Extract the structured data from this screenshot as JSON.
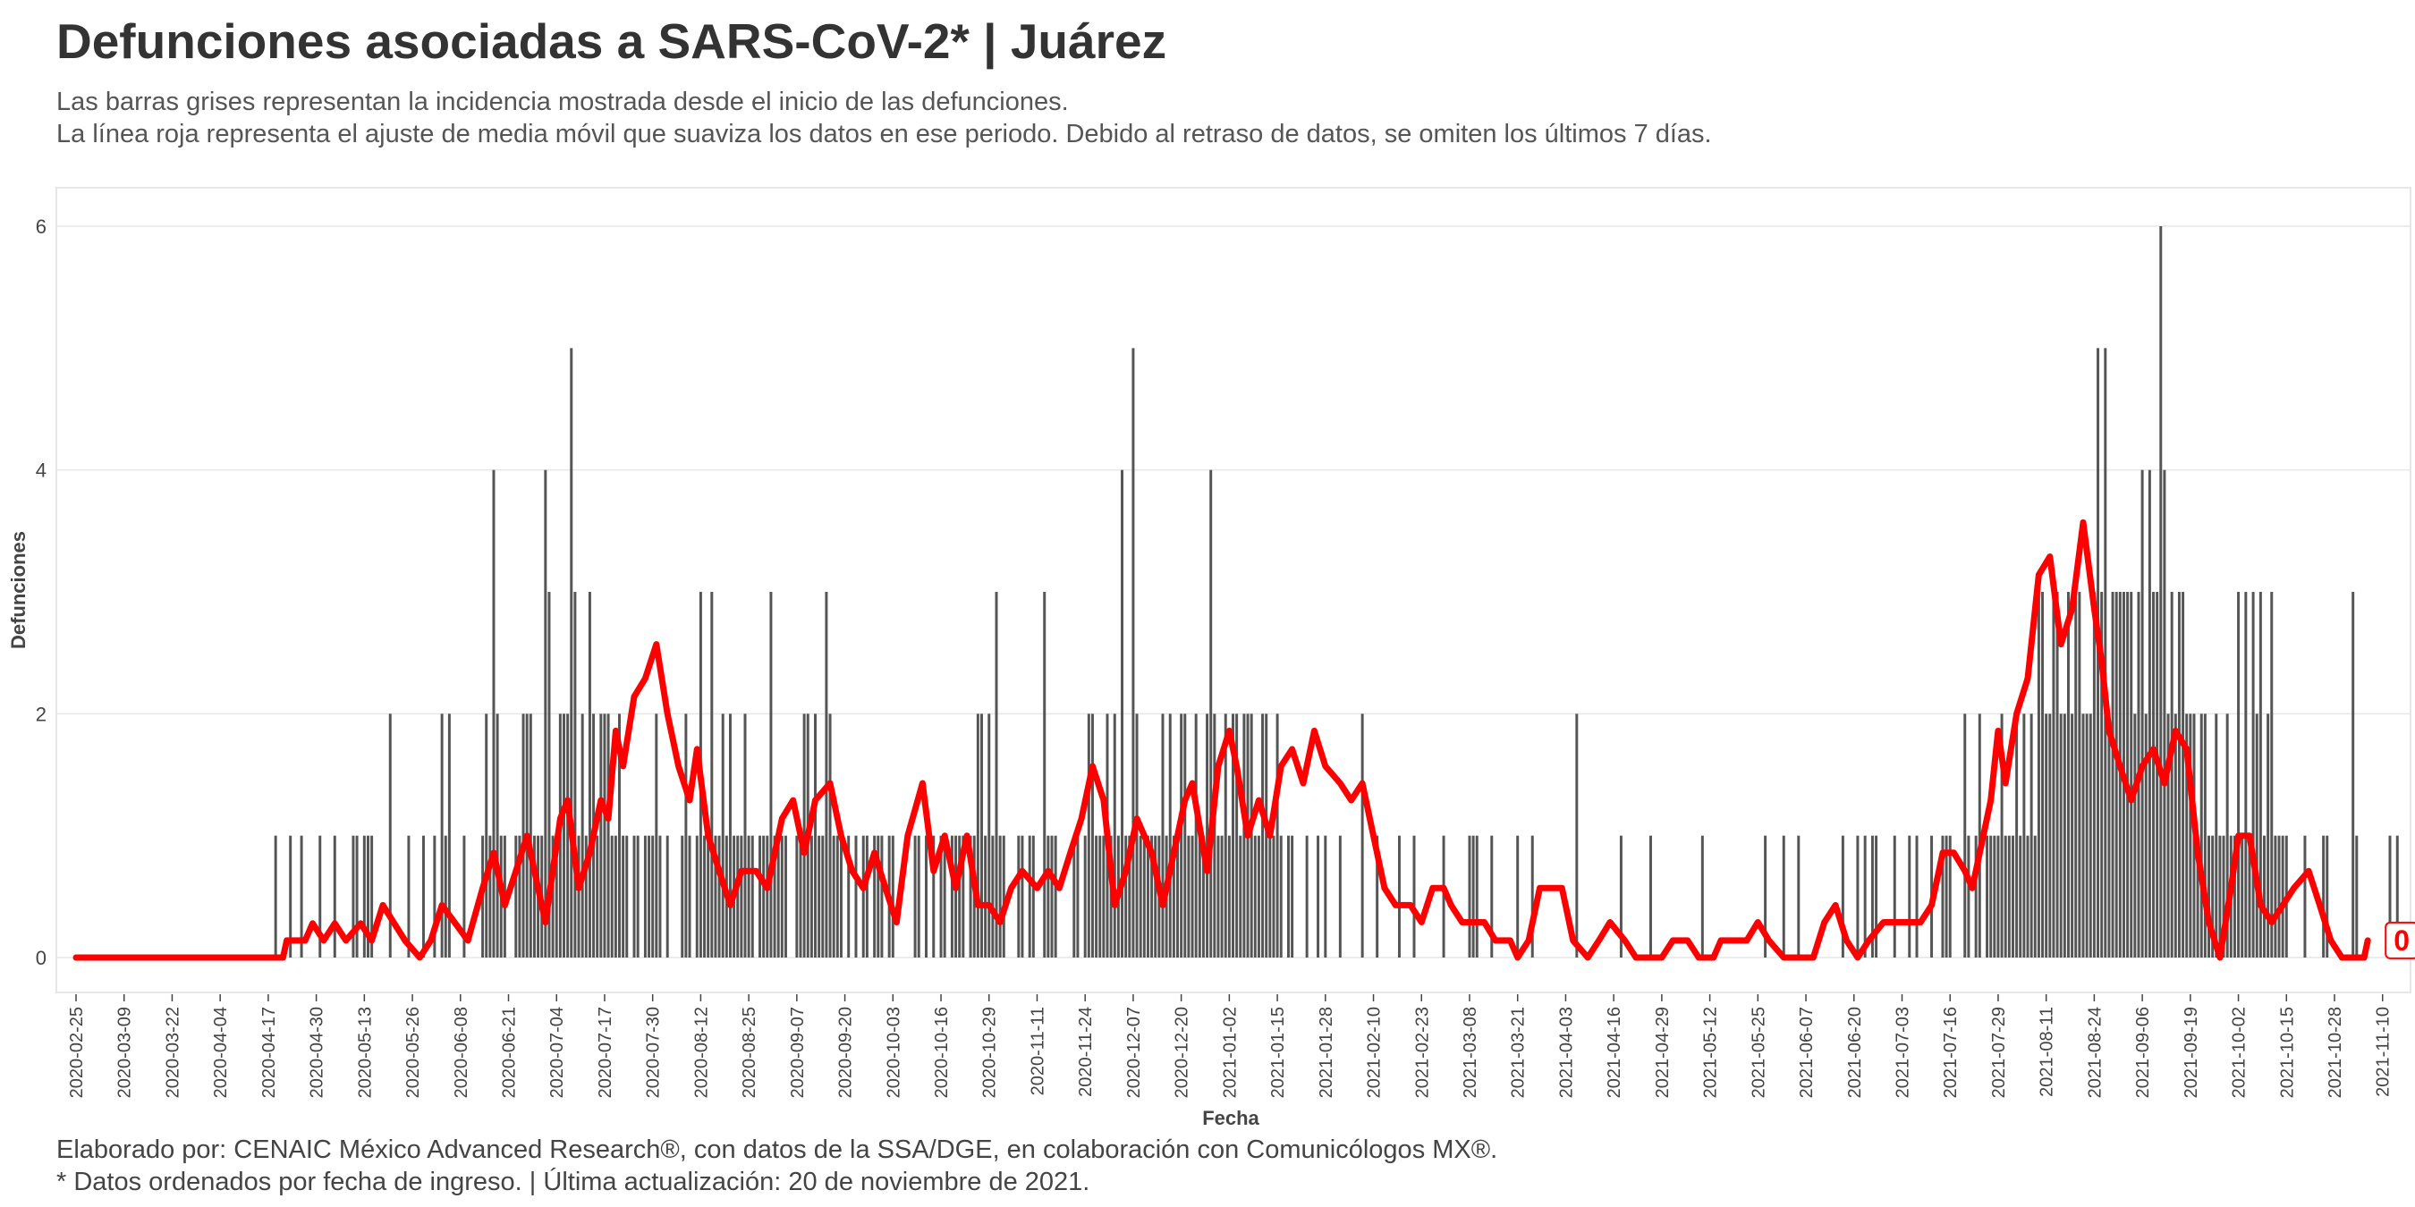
{
  "title": "Defunciones asociadas a SARS-CoV-2* | Juárez",
  "subtitle_lines": [
    "Las barras grises representan la incidencia mostrada desde el inicio de las defunciones.",
    "La línea roja representa el ajuste de media móvil que suaviza los datos en ese periodo. Debido al retraso de datos, se omiten los últimos 7 días."
  ],
  "caption_lines": [
    "Elaborado por: CENAIC México Advanced Research®, con datos de la SSA/DGE, en colaboración con Comunicólogos MX®.",
    "* Datos ordenados por fecha de ingreso. | Última actualización: 20 de noviembre de 2021."
  ],
  "colors": {
    "bars": "#555555",
    "line": "#ff0000",
    "grid": "#e6e6e6",
    "text": "#444444"
  },
  "chart_data": {
    "type": "bar",
    "xlabel": "Fecha",
    "ylabel": "Defunciones",
    "start_date": "2020-02-25",
    "end_date": "2021-11-12",
    "ylim": [
      0,
      6
    ],
    "yticks": [
      0,
      2,
      4,
      6
    ],
    "xticks": [
      "2020-02-25",
      "2020-03-09",
      "2020-03-22",
      "2020-04-04",
      "2020-04-17",
      "2020-04-30",
      "2020-05-13",
      "2020-05-26",
      "2020-06-08",
      "2020-06-21",
      "2020-07-04",
      "2020-07-17",
      "2020-07-30",
      "2020-08-12",
      "2020-08-25",
      "2020-09-07",
      "2020-09-20",
      "2020-10-03",
      "2020-10-16",
      "2020-10-29",
      "2020-11-11",
      "2020-11-24",
      "2020-12-07",
      "2020-12-20",
      "2021-01-02",
      "2021-01-15",
      "2021-01-28",
      "2021-02-10",
      "2021-02-23",
      "2021-03-08",
      "2021-03-21",
      "2021-04-03",
      "2021-04-16",
      "2021-04-29",
      "2021-05-12",
      "2021-05-25",
      "2021-06-07",
      "2021-06-20",
      "2021-07-03",
      "2021-07-16",
      "2021-07-29",
      "2021-08-11",
      "2021-08-24",
      "2021-09-06",
      "2021-09-19",
      "2021-10-02",
      "2021-10-15",
      "2021-10-28",
      "2021-11-10"
    ],
    "values": [
      0,
      0,
      0,
      0,
      0,
      0,
      0,
      0,
      0,
      0,
      0,
      0,
      0,
      0,
      0,
      0,
      0,
      0,
      0,
      0,
      0,
      0,
      0,
      0,
      0,
      0,
      0,
      0,
      0,
      0,
      0,
      0,
      0,
      0,
      0,
      0,
      0,
      0,
      0,
      0,
      0,
      0,
      0,
      0,
      0,
      0,
      0,
      0,
      0,
      0,
      0,
      0,
      0,
      0,
      1,
      0,
      0,
      0,
      1,
      0,
      0,
      1,
      0,
      0,
      0,
      0,
      1,
      0,
      0,
      0,
      1,
      0,
      0,
      0,
      0,
      1,
      1,
      0,
      1,
      1,
      1,
      0,
      0,
      0,
      0,
      2,
      0,
      0,
      0,
      0,
      1,
      0,
      0,
      0,
      1,
      0,
      0,
      1,
      0,
      2,
      1,
      2,
      0,
      0,
      0,
      1,
      0,
      0,
      0,
      0,
      1,
      2,
      1,
      4,
      2,
      1,
      1,
      0,
      0,
      1,
      1,
      2,
      2,
      2,
      1,
      1,
      1,
      4,
      3,
      1,
      1,
      2,
      2,
      2,
      5,
      3,
      1,
      2,
      1,
      3,
      2,
      1,
      2,
      2,
      2,
      1,
      1,
      2,
      1,
      1,
      0,
      1,
      1,
      0,
      1,
      1,
      1,
      2,
      1,
      0,
      1,
      0,
      0,
      0,
      1,
      2,
      1,
      0,
      1,
      3,
      1,
      1,
      3,
      1,
      1,
      2,
      1,
      2,
      1,
      1,
      1,
      2,
      1,
      1,
      0,
      1,
      1,
      1,
      3,
      1,
      1,
      1,
      1,
      0,
      0,
      1,
      1,
      2,
      2,
      1,
      2,
      1,
      1,
      3,
      2,
      1,
      1,
      1,
      0,
      1,
      0,
      1,
      0,
      1,
      1,
      0,
      1,
      1,
      1,
      0,
      1,
      1,
      0,
      0,
      0,
      0,
      0,
      1,
      1,
      0,
      1,
      0,
      1,
      0,
      1,
      1,
      0,
      1,
      1,
      1,
      1,
      0,
      1,
      1,
      2,
      2,
      1,
      2,
      1,
      3,
      1,
      1,
      0,
      0,
      0,
      1,
      1,
      0,
      1,
      1,
      0,
      0,
      3,
      1,
      1,
      1,
      0,
      0,
      0,
      0,
      1,
      1,
      0,
      1,
      2,
      2,
      1,
      1,
      1,
      2,
      1,
      2,
      1,
      4,
      1,
      1,
      5,
      2,
      1,
      1,
      1,
      1,
      1,
      1,
      2,
      1,
      2,
      1,
      1,
      2,
      2,
      1,
      1,
      2,
      1,
      1,
      2,
      4,
      2,
      1,
      1,
      2,
      1,
      2,
      2,
      1,
      2,
      2,
      2,
      1,
      1,
      2,
      2,
      1,
      1,
      2,
      1,
      0,
      1,
      1,
      0,
      0,
      0,
      1,
      0,
      0,
      1,
      0,
      1,
      0,
      0,
      0,
      1,
      0,
      0,
      0,
      0,
      0,
      2,
      0,
      0,
      0,
      1,
      0,
      0,
      0,
      0,
      0,
      1,
      0,
      0,
      0,
      1,
      0,
      0,
      0,
      0,
      0,
      0,
      0,
      1,
      0,
      0,
      0,
      0,
      0,
      0,
      1,
      1,
      1,
      0,
      0,
      0,
      1,
      0,
      0,
      0,
      0,
      0,
      0,
      1,
      0,
      0,
      0,
      1,
      0,
      0,
      0,
      0,
      0,
      0,
      0,
      0,
      0,
      0,
      0,
      2,
      0,
      0,
      0,
      0,
      0,
      0,
      0,
      0,
      0,
      0,
      0,
      1,
      0,
      0,
      0,
      0,
      0,
      0,
      0,
      1,
      0,
      0,
      0,
      0,
      0,
      0,
      0,
      0,
      0,
      0,
      0,
      0,
      0,
      1,
      0,
      0,
      0,
      0,
      0,
      0,
      0,
      0,
      0,
      0,
      0,
      0,
      0,
      0,
      0,
      0,
      1,
      0,
      0,
      0,
      0,
      1,
      0,
      0,
      0,
      1,
      0,
      0,
      0,
      0,
      0,
      0,
      0,
      0,
      0,
      0,
      0,
      1,
      0,
      0,
      0,
      1,
      0,
      1,
      0,
      1,
      1,
      0,
      0,
      0,
      0,
      1,
      0,
      0,
      0,
      1,
      0,
      1,
      0,
      0,
      0,
      1,
      0,
      0,
      1,
      1,
      1,
      0,
      0,
      0,
      2,
      1,
      0,
      1,
      2,
      0,
      1,
      1,
      1,
      1,
      2,
      1,
      1,
      1,
      2,
      1,
      2,
      1,
      2,
      1,
      3,
      3,
      2,
      2,
      3,
      3,
      2,
      2,
      3,
      2,
      3,
      3,
      2,
      2,
      2,
      3,
      5,
      3,
      5,
      2,
      3,
      3,
      3,
      3,
      3,
      3,
      2,
      3,
      4,
      2,
      4,
      3,
      3,
      6,
      4,
      2,
      3,
      2,
      3,
      3,
      2,
      2,
      2,
      1,
      2,
      2,
      1,
      1,
      2,
      1,
      1,
      2,
      1,
      1,
      3,
      1,
      3,
      1,
      3,
      2,
      3,
      1,
      2,
      3,
      1,
      1,
      1,
      1,
      0,
      0,
      0,
      0,
      1,
      0,
      0,
      0,
      0,
      1,
      1,
      0,
      0,
      0,
      0,
      0,
      0,
      3,
      1,
      0,
      0,
      0,
      0,
      0,
      0,
      0,
      0,
      1,
      0,
      1,
      0,
      0,
      0,
      0,
      0,
      0,
      1,
      0,
      0,
      0,
      2,
      0,
      1,
      0,
      0,
      1,
      0,
      0,
      1,
      0,
      1,
      1,
      0,
      0,
      0,
      0,
      0,
      0,
      0,
      0,
      0,
      0,
      0,
      0,
      0,
      0,
      0,
      0,
      0
    ],
    "moving_average": [
      [
        "2020-02-25",
        0
      ],
      [
        "2020-04-21",
        0
      ],
      [
        "2020-04-22",
        0.14
      ],
      [
        "2020-04-27",
        0.14
      ],
      [
        "2020-04-29",
        0.28
      ],
      [
        "2020-05-02",
        0.14
      ],
      [
        "2020-05-05",
        0.28
      ],
      [
        "2020-05-08",
        0.14
      ],
      [
        "2020-05-12",
        0.28
      ],
      [
        "2020-05-15",
        0.14
      ],
      [
        "2020-05-18",
        0.43
      ],
      [
        "2020-05-24",
        0.14
      ],
      [
        "2020-05-28",
        0
      ],
      [
        "2020-05-31",
        0.14
      ],
      [
        "2020-06-03",
        0.43
      ],
      [
        "2020-06-10",
        0.14
      ],
      [
        "2020-06-14",
        0.57
      ],
      [
        "2020-06-17",
        0.86
      ],
      [
        "2020-06-20",
        0.43
      ],
      [
        "2020-06-23",
        0.71
      ],
      [
        "2020-06-26",
        1.0
      ],
      [
        "2020-06-29",
        0.57
      ],
      [
        "2020-07-01",
        0.29
      ],
      [
        "2020-07-05",
        1.14
      ],
      [
        "2020-07-07",
        1.29
      ],
      [
        "2020-07-10",
        0.57
      ],
      [
        "2020-07-13",
        0.86
      ],
      [
        "2020-07-16",
        1.29
      ],
      [
        "2020-07-18",
        1.14
      ],
      [
        "2020-07-20",
        1.86
      ],
      [
        "2020-07-22",
        1.57
      ],
      [
        "2020-07-25",
        2.14
      ],
      [
        "2020-07-28",
        2.29
      ],
      [
        "2020-07-31",
        2.57
      ],
      [
        "2020-08-03",
        2.0
      ],
      [
        "2020-08-06",
        1.57
      ],
      [
        "2020-08-09",
        1.29
      ],
      [
        "2020-08-11",
        1.71
      ],
      [
        "2020-08-14",
        1.0
      ],
      [
        "2020-08-17",
        0.71
      ],
      [
        "2020-08-20",
        0.43
      ],
      [
        "2020-08-23",
        0.71
      ],
      [
        "2020-08-27",
        0.71
      ],
      [
        "2020-08-30",
        0.57
      ],
      [
        "2020-09-03",
        1.14
      ],
      [
        "2020-09-06",
        1.29
      ],
      [
        "2020-09-09",
        0.86
      ],
      [
        "2020-09-12",
        1.29
      ],
      [
        "2020-09-16",
        1.43
      ],
      [
        "2020-09-19",
        1.0
      ],
      [
        "2020-09-22",
        0.71
      ],
      [
        "2020-09-25",
        0.57
      ],
      [
        "2020-09-28",
        0.86
      ],
      [
        "2020-10-01",
        0.57
      ],
      [
        "2020-10-04",
        0.29
      ],
      [
        "2020-10-07",
        1.0
      ],
      [
        "2020-10-11",
        1.43
      ],
      [
        "2020-10-14",
        0.71
      ],
      [
        "2020-10-17",
        1.0
      ],
      [
        "2020-10-20",
        0.57
      ],
      [
        "2020-10-23",
        1.0
      ],
      [
        "2020-10-26",
        0.43
      ],
      [
        "2020-10-29",
        0.43
      ],
      [
        "2020-11-01",
        0.29
      ],
      [
        "2020-11-04",
        0.57
      ],
      [
        "2020-11-07",
        0.71
      ],
      [
        "2020-11-11",
        0.57
      ],
      [
        "2020-11-14",
        0.71
      ],
      [
        "2020-11-17",
        0.57
      ],
      [
        "2020-11-20",
        0.86
      ],
      [
        "2020-11-23",
        1.14
      ],
      [
        "2020-11-26",
        1.57
      ],
      [
        "2020-11-29",
        1.29
      ],
      [
        "2020-12-02",
        0.43
      ],
      [
        "2020-12-05",
        0.71
      ],
      [
        "2020-12-08",
        1.14
      ],
      [
        "2020-12-12",
        0.86
      ],
      [
        "2020-12-15",
        0.43
      ],
      [
        "2020-12-18",
        0.86
      ],
      [
        "2020-12-21",
        1.29
      ],
      [
        "2020-12-23",
        1.43
      ],
      [
        "2020-12-27",
        0.71
      ],
      [
        "2020-12-30",
        1.57
      ],
      [
        "2021-01-02",
        1.86
      ],
      [
        "2021-01-04",
        1.57
      ],
      [
        "2021-01-07",
        1.0
      ],
      [
        "2021-01-10",
        1.29
      ],
      [
        "2021-01-13",
        1.0
      ],
      [
        "2021-01-16",
        1.57
      ],
      [
        "2021-01-19",
        1.71
      ],
      [
        "2021-01-22",
        1.43
      ],
      [
        "2021-01-25",
        1.86
      ],
      [
        "2021-01-28",
        1.57
      ],
      [
        "2021-02-01",
        1.43
      ],
      [
        "2021-02-04",
        1.29
      ],
      [
        "2021-02-07",
        1.43
      ],
      [
        "2021-02-10",
        1.0
      ],
      [
        "2021-02-13",
        0.57
      ],
      [
        "2021-02-16",
        0.43
      ],
      [
        "2021-02-20",
        0.43
      ],
      [
        "2021-02-23",
        0.29
      ],
      [
        "2021-02-26",
        0.57
      ],
      [
        "2021-03-01",
        0.57
      ],
      [
        "2021-03-03",
        0.43
      ],
      [
        "2021-03-06",
        0.29
      ],
      [
        "2021-03-12",
        0.29
      ],
      [
        "2021-03-15",
        0.14
      ],
      [
        "2021-03-19",
        0.14
      ],
      [
        "2021-03-21",
        0
      ],
      [
        "2021-03-24",
        0.14
      ],
      [
        "2021-03-27",
        0.57
      ],
      [
        "2021-04-02",
        0.57
      ],
      [
        "2021-04-05",
        0.14
      ],
      [
        "2021-04-09",
        0
      ],
      [
        "2021-04-12",
        0.14
      ],
      [
        "2021-04-15",
        0.29
      ],
      [
        "2021-04-19",
        0.14
      ],
      [
        "2021-04-22",
        0
      ],
      [
        "2021-04-29",
        0
      ],
      [
        "2021-05-02",
        0.14
      ],
      [
        "2021-05-06",
        0.14
      ],
      [
        "2021-05-09",
        0
      ],
      [
        "2021-05-13",
        0
      ],
      [
        "2021-05-15",
        0.14
      ],
      [
        "2021-05-22",
        0.14
      ],
      [
        "2021-05-25",
        0.29
      ],
      [
        "2021-05-28",
        0.14
      ],
      [
        "2021-06-01",
        0
      ],
      [
        "2021-06-09",
        0
      ],
      [
        "2021-06-12",
        0.29
      ],
      [
        "2021-06-15",
        0.43
      ],
      [
        "2021-06-18",
        0.14
      ],
      [
        "2021-06-21",
        0
      ],
      [
        "2021-06-24",
        0.14
      ],
      [
        "2021-06-28",
        0.29
      ],
      [
        "2021-07-08",
        0.29
      ],
      [
        "2021-07-11",
        0.43
      ],
      [
        "2021-07-14",
        0.86
      ],
      [
        "2021-07-17",
        0.86
      ],
      [
        "2021-07-20",
        0.71
      ],
      [
        "2021-07-22",
        0.57
      ],
      [
        "2021-07-25",
        1.0
      ],
      [
        "2021-07-27",
        1.29
      ],
      [
        "2021-07-29",
        1.86
      ],
      [
        "2021-07-31",
        1.43
      ],
      [
        "2021-08-03",
        2.0
      ],
      [
        "2021-08-06",
        2.29
      ],
      [
        "2021-08-09",
        3.14
      ],
      [
        "2021-08-12",
        3.29
      ],
      [
        "2021-08-15",
        2.57
      ],
      [
        "2021-08-18",
        2.86
      ],
      [
        "2021-08-21",
        3.57
      ],
      [
        "2021-08-24",
        2.86
      ],
      [
        "2021-08-26",
        2.43
      ],
      [
        "2021-08-28",
        1.86
      ],
      [
        "2021-08-31",
        1.57
      ],
      [
        "2021-09-03",
        1.29
      ],
      [
        "2021-09-06",
        1.57
      ],
      [
        "2021-09-09",
        1.71
      ],
      [
        "2021-09-12",
        1.43
      ],
      [
        "2021-09-15",
        1.86
      ],
      [
        "2021-09-18",
        1.71
      ],
      [
        "2021-09-21",
        0.86
      ],
      [
        "2021-09-24",
        0.29
      ],
      [
        "2021-09-27",
        0
      ],
      [
        "2021-09-30",
        0.57
      ],
      [
        "2021-10-02",
        1.0
      ],
      [
        "2021-10-05",
        1.0
      ],
      [
        "2021-10-08",
        0.43
      ],
      [
        "2021-10-11",
        0.29
      ],
      [
        "2021-10-14",
        0.43
      ],
      [
        "2021-10-17",
        0.57
      ],
      [
        "2021-10-21",
        0.71
      ],
      [
        "2021-10-24",
        0.43
      ],
      [
        "2021-10-27",
        0.14
      ],
      [
        "2021-10-30",
        0
      ],
      [
        "2021-11-05",
        0
      ],
      [
        "2021-11-06",
        0.14
      ]
    ],
    "last_label": "0"
  }
}
